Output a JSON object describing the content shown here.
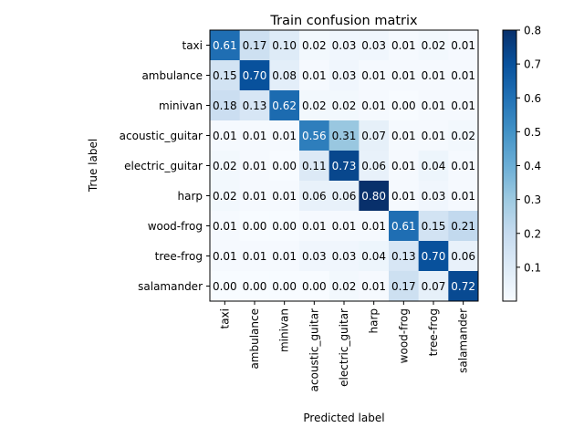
{
  "chart_data": {
    "type": "heatmap",
    "title": "Train confusion matrix",
    "xlabel": "Predicted label",
    "ylabel": "True label",
    "x_categories": [
      "taxi",
      "ambulance",
      "minivan",
      "acoustic_guitar",
      "electric_guitar",
      "harp",
      "wood-frog",
      "tree-frog",
      "salamander"
    ],
    "y_categories": [
      "taxi",
      "ambulance",
      "minivan",
      "acoustic_guitar",
      "electric_guitar",
      "harp",
      "wood-frog",
      "tree-frog",
      "salamander"
    ],
    "values": [
      [
        0.61,
        0.17,
        0.1,
        0.02,
        0.03,
        0.03,
        0.01,
        0.02,
        0.01
      ],
      [
        0.15,
        0.7,
        0.08,
        0.01,
        0.03,
        0.01,
        0.01,
        0.01,
        0.01
      ],
      [
        0.18,
        0.13,
        0.62,
        0.02,
        0.02,
        0.01,
        0.0,
        0.01,
        0.01
      ],
      [
        0.01,
        0.01,
        0.01,
        0.56,
        0.31,
        0.07,
        0.01,
        0.01,
        0.02
      ],
      [
        0.02,
        0.01,
        0.0,
        0.11,
        0.73,
        0.06,
        0.01,
        0.04,
        0.01
      ],
      [
        0.02,
        0.01,
        0.01,
        0.06,
        0.06,
        0.8,
        0.01,
        0.03,
        0.01
      ],
      [
        0.01,
        0.0,
        0.0,
        0.01,
        0.01,
        0.01,
        0.61,
        0.15,
        0.21
      ],
      [
        0.01,
        0.01,
        0.01,
        0.03,
        0.03,
        0.04,
        0.13,
        0.7,
        0.06
      ],
      [
        0.0,
        0.0,
        0.0,
        0.0,
        0.02,
        0.01,
        0.17,
        0.07,
        0.72
      ]
    ],
    "colorbar": {
      "min": 0.0,
      "max": 0.8,
      "ticks": [
        "0.1",
        "0.2",
        "0.3",
        "0.4",
        "0.5",
        "0.6",
        "0.7",
        "0.8"
      ],
      "colormap": "Blues"
    },
    "text_threshold": 0.4,
    "grid": false
  },
  "colors": {
    "text_dark": "#000000",
    "text_light": "#ffffff"
  }
}
